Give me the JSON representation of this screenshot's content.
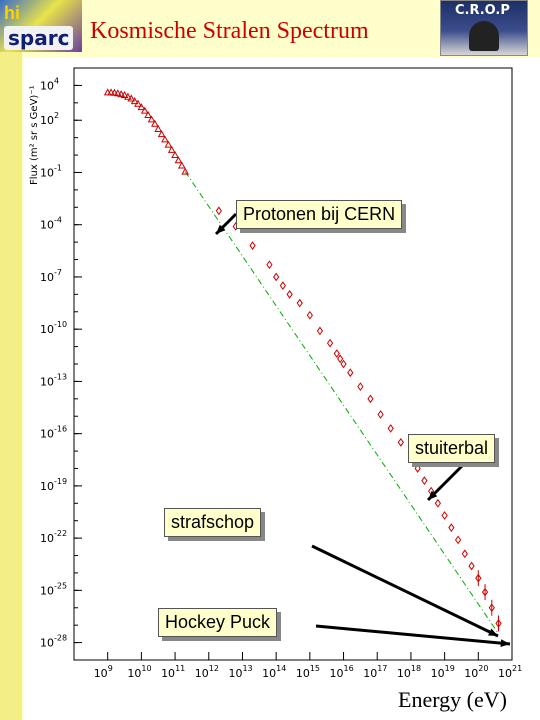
{
  "header": {
    "title": "Kosmische Stralen Spectrum",
    "logo_left": "sparc",
    "logo_right": "C.R.O.P"
  },
  "chart_data": {
    "type": "scatter",
    "title": "",
    "xlabel": "Energy (eV)",
    "ylabel": "Flux (m² sr s GeV)⁻¹",
    "xscale": "log",
    "yscale": "log",
    "xlim": [
      100000000.0,
      1e+21
    ],
    "ylim": [
      1e-29,
      100000.0
    ],
    "x_ticks": [
      "10^9",
      "10^10",
      "10^11",
      "10^12",
      "10^13",
      "10^14",
      "10^15",
      "10^16",
      "10^17",
      "10^18",
      "10^19",
      "10^20",
      "10^21"
    ],
    "y_ticks": [
      "10^4",
      "10^2",
      "10^-1",
      "10^-4",
      "10^-7",
      "10^-10",
      "10^-13",
      "10^-16",
      "10^-19",
      "10^-22",
      "10^-25",
      "10^-28"
    ],
    "grid": false,
    "series": [
      {
        "marker": "triangle",
        "color": "#cc0000",
        "points": [
          [
            9.0,
            3.6
          ],
          [
            9.1,
            3.6
          ],
          [
            9.2,
            3.58
          ],
          [
            9.3,
            3.55
          ],
          [
            9.4,
            3.5
          ],
          [
            9.5,
            3.45
          ],
          [
            9.6,
            3.35
          ],
          [
            9.7,
            3.25
          ],
          [
            9.8,
            3.1
          ],
          [
            9.9,
            2.95
          ],
          [
            10.0,
            2.75
          ],
          [
            10.1,
            2.55
          ],
          [
            10.2,
            2.3
          ],
          [
            10.3,
            2.05
          ],
          [
            10.4,
            1.8
          ],
          [
            10.5,
            1.5
          ],
          [
            10.6,
            1.2
          ],
          [
            10.7,
            0.9
          ],
          [
            10.8,
            0.6
          ],
          [
            10.9,
            0.3
          ],
          [
            11.0,
            0.0
          ],
          [
            11.1,
            -0.3
          ],
          [
            11.2,
            -0.6
          ],
          [
            11.3,
            -0.95
          ]
        ]
      },
      {
        "marker": "diamond",
        "color": "#cc0000",
        "points": [
          [
            12.3,
            -3.2
          ],
          [
            12.8,
            -4.1
          ],
          [
            13.3,
            -5.2
          ],
          [
            13.8,
            -6.3
          ],
          [
            14.0,
            -7.0
          ],
          [
            14.2,
            -7.5
          ],
          [
            14.4,
            -8.0
          ],
          [
            14.7,
            -8.5
          ],
          [
            15.0,
            -9.2
          ],
          [
            15.3,
            -10.1
          ],
          [
            15.6,
            -10.8
          ],
          [
            15.8,
            -11.4
          ],
          [
            15.9,
            -11.7
          ],
          [
            16.0,
            -12.0
          ],
          [
            16.2,
            -12.5
          ],
          [
            16.5,
            -13.3
          ],
          [
            16.8,
            -14.0
          ],
          [
            17.1,
            -14.9
          ],
          [
            17.4,
            -15.7
          ],
          [
            17.7,
            -16.5
          ],
          [
            18.0,
            -17.4
          ],
          [
            18.2,
            -18.0
          ],
          [
            18.4,
            -18.7
          ],
          [
            18.6,
            -19.3
          ],
          [
            18.8,
            -20.0
          ],
          [
            19.0,
            -20.7
          ],
          [
            19.2,
            -21.4
          ],
          [
            19.4,
            -22.1
          ],
          [
            19.6,
            -22.9
          ],
          [
            19.8,
            -23.6
          ],
          [
            20.0,
            -24.3
          ],
          [
            20.2,
            -25.1
          ],
          [
            20.4,
            -26.0
          ],
          [
            20.6,
            -26.9
          ]
        ]
      }
    ],
    "fit_line": {
      "style": "dash-dot",
      "color": "#00aa00",
      "from": [
        11.3,
        -0.95
      ],
      "to": [
        20.6,
        -27.5
      ]
    },
    "annotations": [
      "Protonen bij CERN",
      "stuiterbal",
      "strafschop",
      "Hockey Puck"
    ]
  }
}
